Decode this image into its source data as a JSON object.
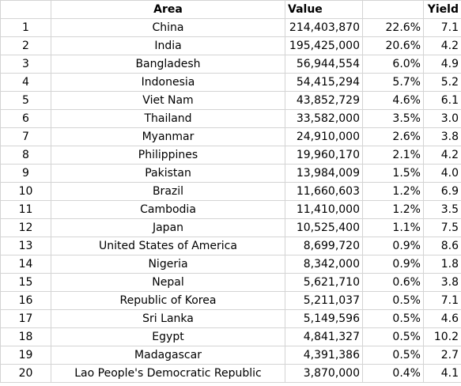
{
  "table": {
    "headers": {
      "index": "",
      "area": "Area",
      "value": "Value",
      "share": "",
      "yield": "Yield"
    },
    "rows": [
      {
        "index": "1",
        "area": "China",
        "value": "214,403,870",
        "share": "22.6%",
        "yield": "7.1"
      },
      {
        "index": "2",
        "area": "India",
        "value": "195,425,000",
        "share": "20.6%",
        "yield": "4.2"
      },
      {
        "index": "3",
        "area": "Bangladesh",
        "value": "56,944,554",
        "share": "6.0%",
        "yield": "4.9"
      },
      {
        "index": "4",
        "area": "Indonesia",
        "value": "54,415,294",
        "share": "5.7%",
        "yield": "5.2"
      },
      {
        "index": "5",
        "area": "Viet Nam",
        "value": "43,852,729",
        "share": "4.6%",
        "yield": "6.1"
      },
      {
        "index": "6",
        "area": "Thailand",
        "value": "33,582,000",
        "share": "3.5%",
        "yield": "3.0"
      },
      {
        "index": "7",
        "area": "Myanmar",
        "value": "24,910,000",
        "share": "2.6%",
        "yield": "3.8"
      },
      {
        "index": "8",
        "area": "Philippines",
        "value": "19,960,170",
        "share": "2.1%",
        "yield": "4.2"
      },
      {
        "index": "9",
        "area": "Pakistan",
        "value": "13,984,009",
        "share": "1.5%",
        "yield": "4.0"
      },
      {
        "index": "10",
        "area": "Brazil",
        "value": "11,660,603",
        "share": "1.2%",
        "yield": "6.9"
      },
      {
        "index": "11",
        "area": "Cambodia",
        "value": "11,410,000",
        "share": "1.2%",
        "yield": "3.5"
      },
      {
        "index": "12",
        "area": "Japan",
        "value": "10,525,400",
        "share": "1.1%",
        "yield": "7.5"
      },
      {
        "index": "13",
        "area": "United States of America",
        "value": "8,699,720",
        "share": "0.9%",
        "yield": "8.6"
      },
      {
        "index": "14",
        "area": "Nigeria",
        "value": "8,342,000",
        "share": "0.9%",
        "yield": "1.8"
      },
      {
        "index": "15",
        "area": "Nepal",
        "value": "5,621,710",
        "share": "0.6%",
        "yield": "3.8"
      },
      {
        "index": "16",
        "area": "Republic of Korea",
        "value": "5,211,037",
        "share": "0.5%",
        "yield": "7.1"
      },
      {
        "index": "17",
        "area": "Sri Lanka",
        "value": "5,149,596",
        "share": "0.5%",
        "yield": "4.6"
      },
      {
        "index": "18",
        "area": "Egypt",
        "value": "4,841,327",
        "share": "0.5%",
        "yield": "10.2"
      },
      {
        "index": "19",
        "area": "Madagascar",
        "value": "4,391,386",
        "share": "0.5%",
        "yield": "2.7"
      },
      {
        "index": "20",
        "area": "Lao People's Democratic Republic",
        "value": "3,870,000",
        "share": "0.4%",
        "yield": "4.1"
      }
    ]
  }
}
